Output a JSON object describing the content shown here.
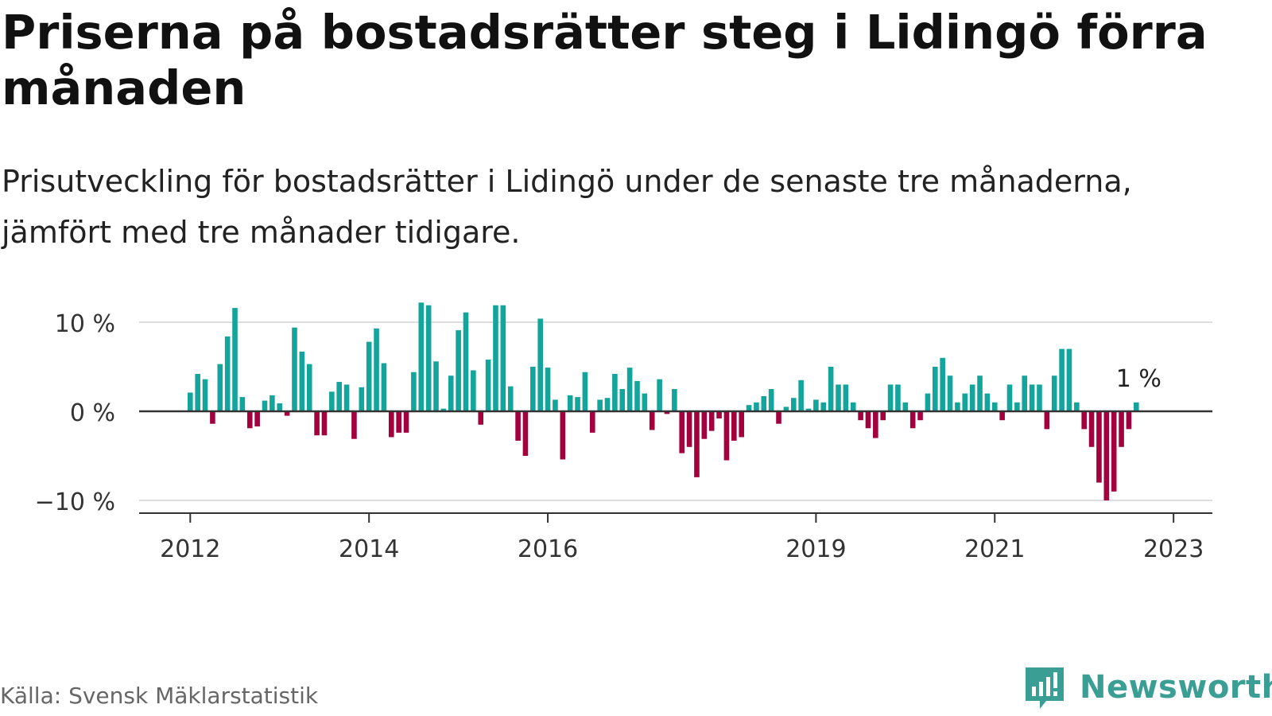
{
  "header": {
    "title": "Priserna på bostadsrätter steg i Lidingö förra månaden",
    "subtitle": "Prisutveckling för bostadsrätter i Lidingö under de senaste tre månaderna, jämfört med tre månader tidigare."
  },
  "footer": {
    "source": "Källa: Svensk Mäklarstatistik",
    "brand": "Newsworthy"
  },
  "colors": {
    "positive": "#13a59b",
    "negative": "#a3003e",
    "grid": "#dddddd",
    "axis": "#333333",
    "brand": "#3a9e94"
  },
  "chart_data": {
    "type": "bar",
    "x_ticks": [
      "2012",
      "2014",
      "2016",
      "2019",
      "2021",
      "2023"
    ],
    "y_ticks": [
      "10 %",
      "0 %",
      "−10 %"
    ],
    "y_tick_values": [
      10,
      0,
      -10
    ],
    "ylim": [
      -11.2,
      12.5
    ],
    "grid": true,
    "annotation": {
      "text": "1 %",
      "value": 1
    },
    "start": "2012-01",
    "end": "2023-02",
    "values": [
      2.1,
      4.2,
      3.6,
      -1.4,
      5.3,
      8.4,
      11.6,
      1.6,
      -1.9,
      -1.7,
      1.2,
      1.8,
      0.9,
      -0.5,
      9.4,
      6.7,
      5.3,
      -2.7,
      -2.7,
      2.2,
      3.3,
      3.0,
      -3.1,
      2.7,
      7.8,
      9.3,
      5.4,
      -2.9,
      -2.4,
      -2.4,
      4.4,
      12.2,
      11.9,
      5.6,
      0.3,
      4.0,
      9.1,
      11.1,
      4.6,
      -1.5,
      5.8,
      11.9,
      11.9,
      2.8,
      -3.3,
      -5.0,
      5.0,
      10.4,
      4.9,
      1.3,
      -5.4,
      1.8,
      1.6,
      4.4,
      -2.4,
      1.3,
      1.5,
      4.2,
      2.5,
      4.9,
      3.4,
      2.0,
      -2.1,
      3.6,
      -0.3,
      2.5,
      -4.7,
      -4.0,
      -7.4,
      -3.1,
      -2.2,
      -0.8,
      -5.5,
      -3.3,
      -2.9,
      0.7,
      1.0,
      1.7,
      2.5,
      -1.4,
      0.5,
      1.5,
      3.5,
      0.3,
      1.3,
      1.0,
      5.0,
      3.0,
      3.0,
      1.0,
      -1.0,
      -1.9,
      -3.0,
      -1.0,
      3.0,
      3.0,
      1.0,
      -1.9,
      -1.0,
      2.0,
      5.0,
      6.0,
      4.0,
      1.0,
      2.0,
      3.0,
      4.0,
      2.0,
      1.0,
      -1.0,
      3.0,
      1.0,
      4.0,
      3.0,
      3.0,
      -2.0,
      4.0,
      7.0,
      7.0,
      1.0,
      -2.0,
      -4.0,
      -8.0,
      -10.0,
      -9.0,
      -4.0,
      -2.0,
      1.0
    ]
  }
}
